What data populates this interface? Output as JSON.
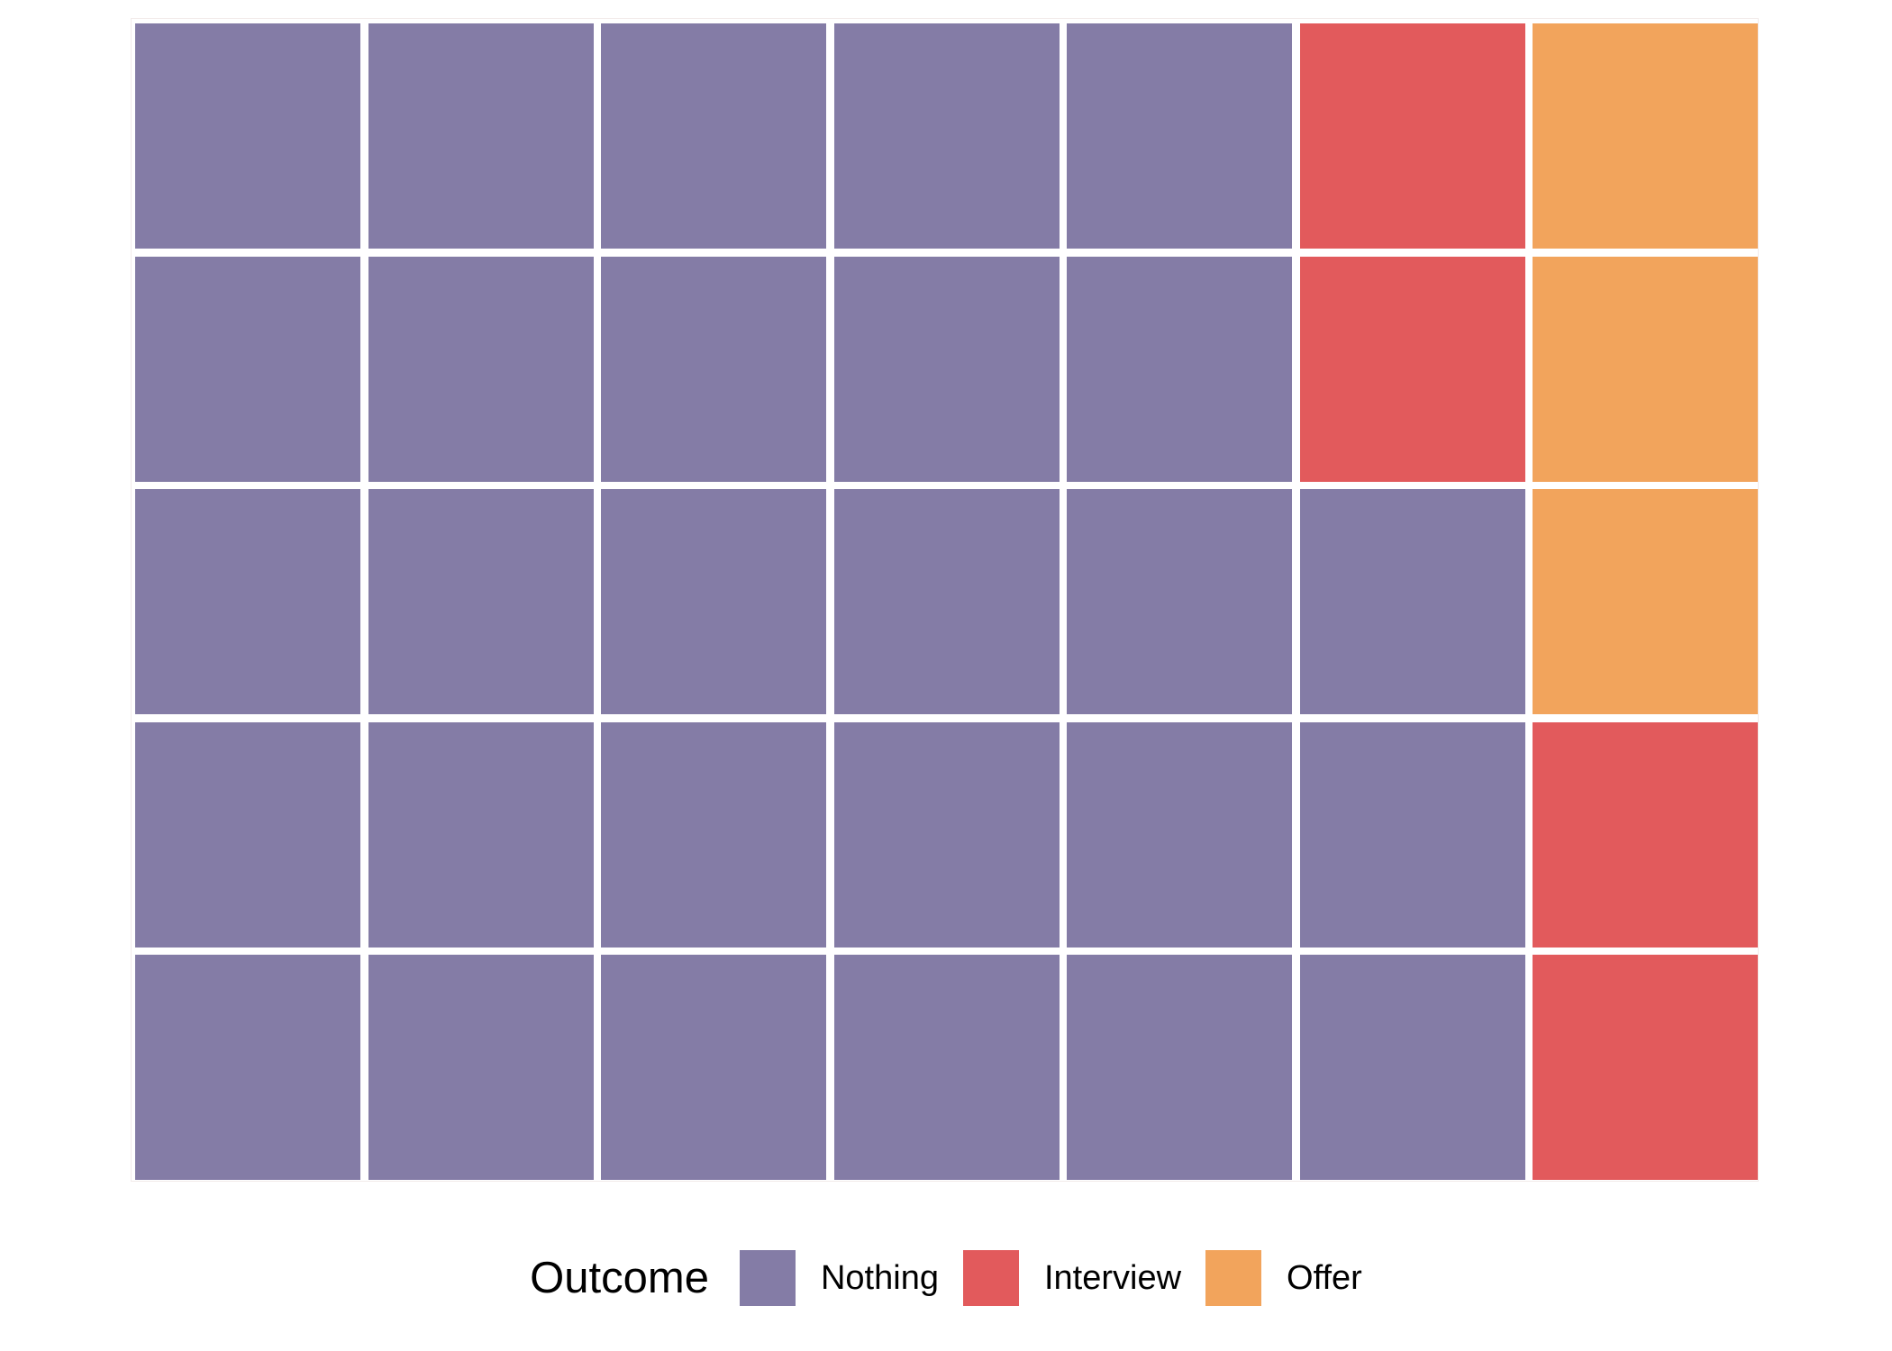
{
  "background_color": "#ffffff",
  "panel_border_color": "#f2ebea",
  "gap_color": "#ffffff",
  "legend": {
    "title": "Outcome",
    "position": "bottom-center"
  },
  "chart_data": {
    "type": "waffle",
    "title": "",
    "legend_title": "Outcome",
    "rows": 5,
    "cols": 7,
    "total_cells": 35,
    "fill_order": "bottom-to-top, column by column, left to right",
    "categories": [
      {
        "label": "Nothing",
        "color": "#847CA6",
        "count": 28
      },
      {
        "label": "Interview",
        "color": "#E25A5C",
        "count": 4
      },
      {
        "label": "Offer",
        "color": "#F2A45C",
        "count": 3
      }
    ],
    "grid": [
      [
        0,
        0,
        0,
        0,
        0,
        1,
        2
      ],
      [
        0,
        0,
        0,
        0,
        0,
        1,
        2
      ],
      [
        0,
        0,
        0,
        0,
        0,
        0,
        2
      ],
      [
        0,
        0,
        0,
        0,
        0,
        0,
        1
      ],
      [
        0,
        0,
        0,
        0,
        0,
        0,
        1
      ]
    ],
    "legend_entries": [
      "Nothing",
      "Interview",
      "Offer"
    ],
    "legend_position": "bottom",
    "grid_lines": false,
    "axes": false
  }
}
